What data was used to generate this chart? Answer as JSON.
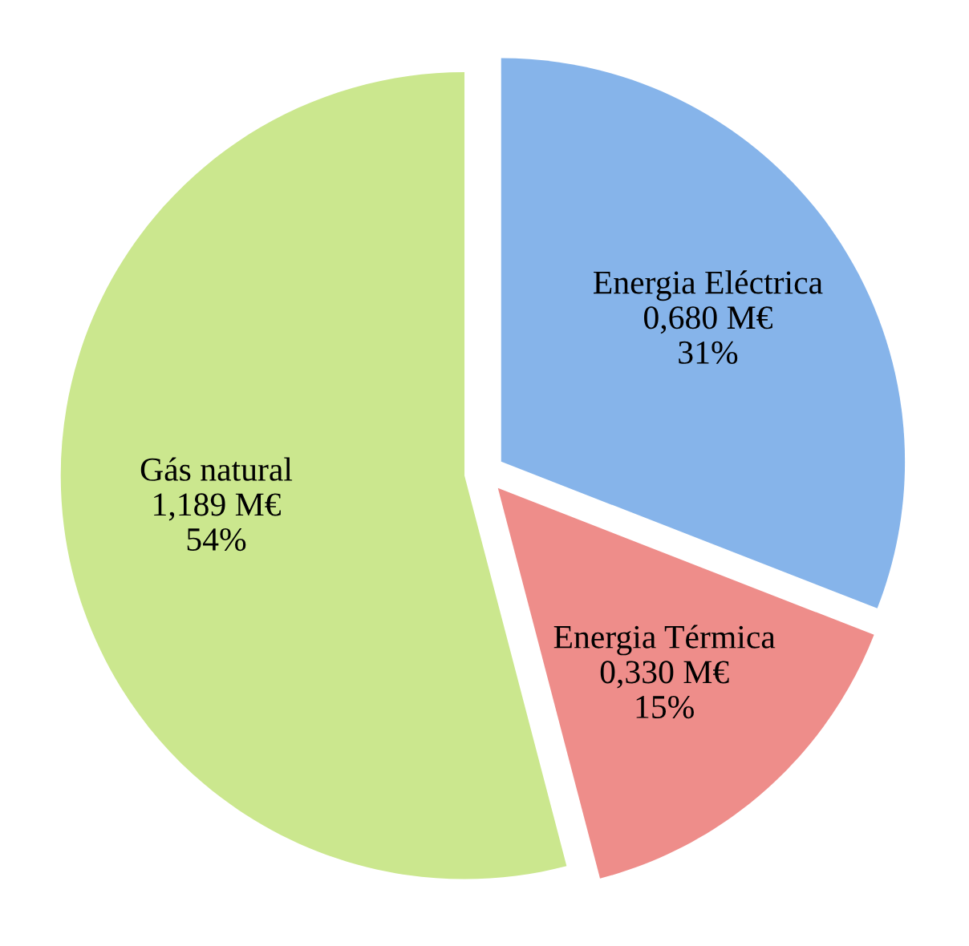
{
  "chart_data": {
    "type": "pie",
    "categories": [
      "Energia Eléctrica",
      "Energia Térmica",
      "Gás natural"
    ],
    "values": [
      0.68,
      0.33,
      1.189
    ],
    "value_labels": [
      "0,680 M€\n31%",
      "0,330 M€\n15%",
      "1,189 M€\n54%"
    ],
    "colors": [
      "#86b4ea",
      "#ee8d8a",
      "#cbe78e"
    ],
    "legend": false
  }
}
